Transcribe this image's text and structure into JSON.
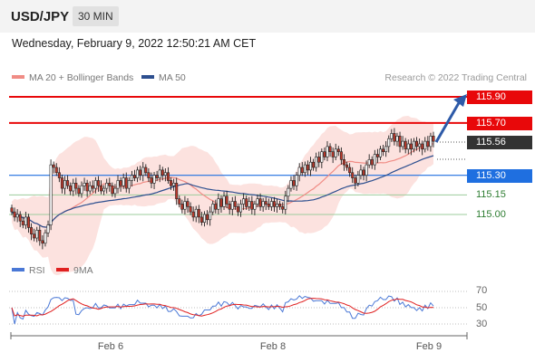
{
  "header": {
    "symbol": "USD/JPY",
    "timeframe": "30 MIN"
  },
  "datetime": "Wednesday, February 9, 2022 12:50:21 AM CET",
  "legend": [
    {
      "label": "MA 20 + Bollinger Bands",
      "color": "#f08c85"
    },
    {
      "label": "MA 50",
      "color": "#2d4f8f"
    }
  ],
  "copyright": "Research © 2022 Trading Central",
  "rsi_legend": [
    {
      "label": "RSI",
      "color": "#4a78d6"
    },
    {
      "label": "9MA",
      "color": "#e02020"
    }
  ],
  "chart_data": {
    "type": "candlestick",
    "ylim": [
      114.5,
      116.0
    ],
    "x_ticks": [
      "Feb 6",
      "Feb 8",
      "Feb 9"
    ],
    "levels": [
      {
        "value": 115.9,
        "label": "115.90",
        "kind": "resistance",
        "color": "#e8080a"
      },
      {
        "value": 115.7,
        "label": "115.70",
        "kind": "resistance",
        "color": "#e8080a"
      },
      {
        "value": 115.56,
        "label": "115.56",
        "kind": "last",
        "color": "#333333"
      },
      {
        "value": 115.3,
        "label": "115.30",
        "kind": "pivot",
        "color": "#1f6fe0"
      },
      {
        "value": 115.15,
        "label": "115.15",
        "kind": "support",
        "color": "#2e8b2e"
      },
      {
        "value": 115.0,
        "label": "115.00",
        "kind": "support",
        "color": "#2e8b2e"
      }
    ],
    "close": [
      115.02,
      114.98,
      115.0,
      114.95,
      114.92,
      114.98,
      114.9,
      114.85,
      114.82,
      114.88,
      114.8,
      114.78,
      114.86,
      114.92,
      115.38,
      115.36,
      115.32,
      115.28,
      115.2,
      115.26,
      115.22,
      115.18,
      115.24,
      115.2,
      115.16,
      115.22,
      115.24,
      115.18,
      115.22,
      115.2,
      115.26,
      115.22,
      115.18,
      115.2,
      115.24,
      115.22,
      115.16,
      115.2,
      115.26,
      115.22,
      115.28,
      115.2,
      115.26,
      115.3,
      115.28,
      115.34,
      115.3,
      115.36,
      115.32,
      115.28,
      115.24,
      115.3,
      115.28,
      115.34,
      115.3,
      115.32,
      115.26,
      115.22,
      115.24,
      115.12,
      115.08,
      115.04,
      115.1,
      115.06,
      115.02,
      114.98,
      115.04,
      114.98,
      114.94,
      115.0,
      114.96,
      115.02,
      115.08,
      115.04,
      115.12,
      115.06,
      115.14,
      115.08,
      115.04,
      115.1,
      115.06,
      115.02,
      115.08,
      115.12,
      115.06,
      115.1,
      115.04,
      115.08,
      115.12,
      115.06,
      115.1,
      115.08,
      115.06,
      115.1,
      115.06,
      115.08,
      115.06,
      115.04,
      115.14,
      115.2,
      115.26,
      115.22,
      115.3,
      115.36,
      115.32,
      115.38,
      115.34,
      115.4,
      115.36,
      115.44,
      115.4,
      115.48,
      115.44,
      115.52,
      115.48,
      115.44,
      115.5,
      115.48,
      115.42,
      115.38,
      115.36,
      115.32,
      115.28,
      115.24,
      115.3,
      115.34,
      115.3,
      115.38,
      115.42,
      115.38,
      115.46,
      115.44,
      115.5,
      115.48,
      115.52,
      115.58,
      115.62,
      115.56,
      115.6,
      115.52,
      115.56,
      115.5,
      115.54,
      115.5,
      115.56,
      115.52,
      115.54,
      115.5,
      115.56,
      115.52,
      115.6,
      115.56
    ],
    "rsi_ticks": [
      70,
      50,
      30
    ]
  }
}
